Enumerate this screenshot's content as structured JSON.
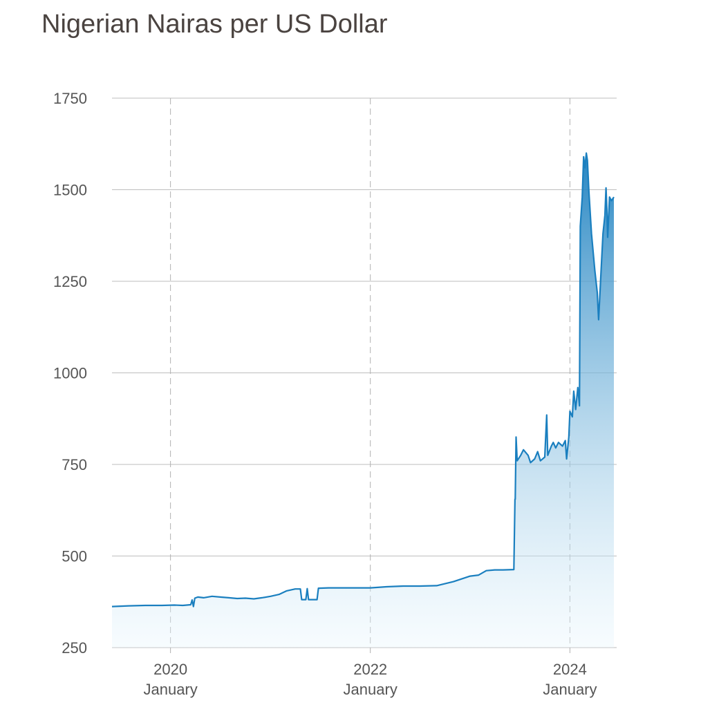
{
  "title": "Nigerian Nairas per US Dollar",
  "colors": {
    "line": "#1a7fbf",
    "fill_top": "#1a7fbf",
    "fill_bottom": "#e8f6fd",
    "grid": "#bdbdbd",
    "vgrid": "#b0b0b0"
  },
  "chart_data": {
    "type": "area",
    "title": "Nigerian Nairas per US Dollar",
    "xlabel": "",
    "ylabel": "",
    "ylim": [
      250,
      1750
    ],
    "xlim": [
      "2019-06-01",
      "2024-06-20"
    ],
    "yticks": [
      250,
      500,
      750,
      1000,
      1250,
      1500,
      1750
    ],
    "xticks": [
      {
        "date": "2020-01-01",
        "year": "2020",
        "month": "January"
      },
      {
        "date": "2022-01-01",
        "year": "2022",
        "month": "January"
      },
      {
        "date": "2024-01-01",
        "year": "2024",
        "month": "January"
      }
    ],
    "grid": "horizontal solid, vertical dashed at x ticks",
    "series": [
      {
        "points": [
          [
            "2019-06-01",
            362
          ],
          [
            "2019-08-01",
            364
          ],
          [
            "2019-10-01",
            365
          ],
          [
            "2019-12-01",
            365
          ],
          [
            "2020-01-15",
            366
          ],
          [
            "2020-02-15",
            365
          ],
          [
            "2020-03-15",
            367
          ],
          [
            "2020-03-20",
            380
          ],
          [
            "2020-03-25",
            362
          ],
          [
            "2020-03-30",
            385
          ],
          [
            "2020-04-10",
            388
          ],
          [
            "2020-05-01",
            386
          ],
          [
            "2020-06-01",
            390
          ],
          [
            "2020-07-01",
            388
          ],
          [
            "2020-08-01",
            386
          ],
          [
            "2020-09-01",
            384
          ],
          [
            "2020-10-01",
            385
          ],
          [
            "2020-11-01",
            383
          ],
          [
            "2020-12-01",
            386
          ],
          [
            "2021-01-01",
            390
          ],
          [
            "2021-02-01",
            395
          ],
          [
            "2021-03-01",
            405
          ],
          [
            "2021-04-01",
            410
          ],
          [
            "2021-04-20",
            410
          ],
          [
            "2021-04-25",
            381
          ],
          [
            "2021-05-10",
            381
          ],
          [
            "2021-05-15",
            411
          ],
          [
            "2021-05-20",
            381
          ],
          [
            "2021-06-20",
            381
          ],
          [
            "2021-06-25",
            412
          ],
          [
            "2021-08-01",
            413
          ],
          [
            "2021-10-01",
            413
          ],
          [
            "2021-12-01",
            413
          ],
          [
            "2022-01-01",
            413
          ],
          [
            "2022-03-01",
            416
          ],
          [
            "2022-05-01",
            418
          ],
          [
            "2022-07-01",
            418
          ],
          [
            "2022-09-01",
            419
          ],
          [
            "2022-11-01",
            430
          ],
          [
            "2023-01-01",
            445
          ],
          [
            "2023-02-01",
            448
          ],
          [
            "2023-03-01",
            460
          ],
          [
            "2023-04-01",
            462
          ],
          [
            "2023-05-01",
            462
          ],
          [
            "2023-06-10",
            463
          ],
          [
            "2023-06-14",
            655
          ],
          [
            "2023-06-15",
            655
          ],
          [
            "2023-06-18",
            825
          ],
          [
            "2023-06-22",
            760
          ],
          [
            "2023-07-05",
            775
          ],
          [
            "2023-07-15",
            790
          ],
          [
            "2023-08-01",
            775
          ],
          [
            "2023-08-10",
            755
          ],
          [
            "2023-08-25",
            765
          ],
          [
            "2023-09-05",
            785
          ],
          [
            "2023-09-15",
            760
          ],
          [
            "2023-10-01",
            770
          ],
          [
            "2023-10-08",
            885
          ],
          [
            "2023-10-12",
            775
          ],
          [
            "2023-10-25",
            800
          ],
          [
            "2023-11-01",
            810
          ],
          [
            "2023-11-10",
            795
          ],
          [
            "2023-11-20",
            810
          ],
          [
            "2023-12-05",
            800
          ],
          [
            "2023-12-15",
            815
          ],
          [
            "2023-12-20",
            765
          ],
          [
            "2023-12-28",
            825
          ],
          [
            "2024-01-01",
            895
          ],
          [
            "2024-01-10",
            880
          ],
          [
            "2024-01-15",
            950
          ],
          [
            "2024-01-22",
            900
          ],
          [
            "2024-01-30",
            960
          ],
          [
            "2024-02-05",
            910
          ],
          [
            "2024-02-08",
            1400
          ],
          [
            "2024-02-15",
            1480
          ],
          [
            "2024-02-20",
            1590
          ],
          [
            "2024-02-25",
            1560
          ],
          [
            "2024-03-01",
            1600
          ],
          [
            "2024-03-05",
            1580
          ],
          [
            "2024-03-10",
            1500
          ],
          [
            "2024-03-20",
            1380
          ],
          [
            "2024-04-01",
            1280
          ],
          [
            "2024-04-10",
            1220
          ],
          [
            "2024-04-15",
            1145
          ],
          [
            "2024-04-22",
            1250
          ],
          [
            "2024-05-01",
            1380
          ],
          [
            "2024-05-08",
            1430
          ],
          [
            "2024-05-12",
            1505
          ],
          [
            "2024-05-15",
            1450
          ],
          [
            "2024-05-18",
            1370
          ],
          [
            "2024-05-25",
            1480
          ],
          [
            "2024-06-01",
            1470
          ],
          [
            "2024-06-10",
            1480
          ]
        ]
      }
    ]
  }
}
